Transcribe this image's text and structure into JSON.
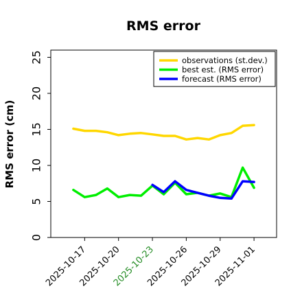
{
  "chart_data": {
    "type": "line",
    "title": "RMS error",
    "xlabel": "",
    "ylabel": "RMS error (cm)",
    "ylim": [
      0,
      26
    ],
    "yticks": [
      0,
      5,
      10,
      15,
      20,
      25
    ],
    "xlim": [
      "2025-10-14",
      "2025-11-03"
    ],
    "xticks": [
      {
        "label": "2025-10-17",
        "color": "#000000"
      },
      {
        "label": "2025-10-20",
        "color": "#000000"
      },
      {
        "label": "2025-10-23",
        "color": "#228B22"
      },
      {
        "label": "2025-10-26",
        "color": "#000000"
      },
      {
        "label": "2025-10-29",
        "color": "#000000"
      },
      {
        "label": "2025-11-01",
        "color": "#000000"
      }
    ],
    "grid": false,
    "legend_position": "top-right",
    "series": [
      {
        "name": "observations (st.dev.)",
        "color": "#FFD700",
        "x": [
          "2025-10-16",
          "2025-10-17",
          "2025-10-18",
          "2025-10-19",
          "2025-10-20",
          "2025-10-21",
          "2025-10-22",
          "2025-10-23",
          "2025-10-24",
          "2025-10-25",
          "2025-10-26",
          "2025-10-27",
          "2025-10-28",
          "2025-10-29",
          "2025-10-30",
          "2025-10-31",
          "2025-11-01"
        ],
        "values": [
          15.1,
          14.8,
          14.8,
          14.6,
          14.2,
          14.4,
          14.5,
          14.3,
          14.1,
          14.1,
          13.6,
          13.8,
          13.6,
          14.2,
          14.5,
          15.5,
          15.6
        ]
      },
      {
        "name": "best est. (RMS error)",
        "color": "#00EE00",
        "x": [
          "2025-10-16",
          "2025-10-17",
          "2025-10-18",
          "2025-10-19",
          "2025-10-20",
          "2025-10-21",
          "2025-10-22",
          "2025-10-23",
          "2025-10-24",
          "2025-10-25",
          "2025-10-26",
          "2025-10-27",
          "2025-10-28",
          "2025-10-29",
          "2025-10-30",
          "2025-10-31",
          "2025-11-01"
        ],
        "values": [
          6.6,
          5.6,
          5.9,
          6.8,
          5.6,
          5.9,
          5.8,
          7.2,
          6.0,
          7.6,
          6.0,
          6.2,
          5.8,
          6.1,
          5.6,
          9.7,
          6.9
        ]
      },
      {
        "name": "forecast (RMS error)",
        "color": "#0000FF",
        "x": [
          "2025-10-23",
          "2025-10-24",
          "2025-10-25",
          "2025-10-26",
          "2025-10-27",
          "2025-10-28",
          "2025-10-29",
          "2025-10-30",
          "2025-10-31",
          "2025-11-01"
        ],
        "values": [
          7.3,
          6.3,
          7.8,
          6.6,
          6.2,
          5.8,
          5.5,
          5.4,
          7.8,
          7.7
        ]
      }
    ]
  }
}
